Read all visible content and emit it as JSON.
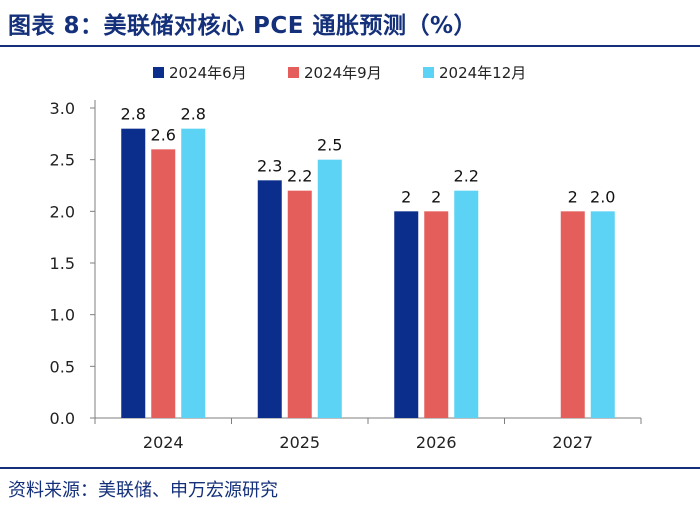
{
  "title": "图表 8：美联储对核心 PCE 通胀预测（%）",
  "source": "资料来源：美联储、申万宏源研究",
  "chart_data": {
    "type": "bar",
    "categories": [
      "2024",
      "2025",
      "2026",
      "2027"
    ],
    "series": [
      {
        "name": "2024年6月",
        "color": "#0b2d8c",
        "values": [
          2.8,
          2.3,
          2.0,
          null
        ],
        "labels": [
          "2.8",
          "2.3",
          "2",
          ""
        ]
      },
      {
        "name": "2024年9月",
        "color": "#e45e5b",
        "values": [
          2.6,
          2.2,
          2.0,
          2.0
        ],
        "labels": [
          "2.6",
          "2.2",
          "2",
          "2"
        ]
      },
      {
        "name": "2024年12月",
        "color": "#5cd2f4",
        "values": [
          2.8,
          2.5,
          2.2,
          2.0
        ],
        "labels": [
          "2.8",
          "2.5",
          "2.2",
          "2.0"
        ]
      }
    ],
    "ylim": [
      0,
      3.0
    ],
    "yticks": [
      "0.0",
      "0.5",
      "1.0",
      "1.5",
      "2.0",
      "2.5",
      "3.0"
    ],
    "xlabel": "",
    "ylabel": "",
    "legend": "top-center"
  }
}
